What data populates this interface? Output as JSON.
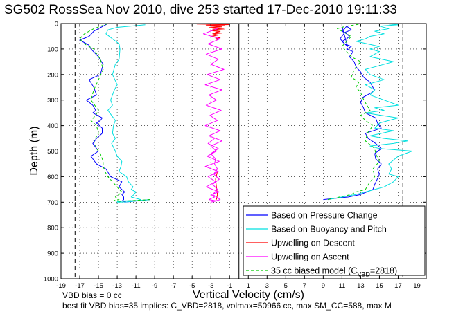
{
  "chart_data": {
    "type": "line",
    "title": "SG502 RossSea Nov 2010, dive 253 started 17-Dec-2010 19:11:33",
    "xlabel": "Vertical Velocity (cm/s)",
    "ylabel": "Depth (m)",
    "xlim": [
      -19,
      20
    ],
    "ylim": [
      0,
      1000
    ],
    "y_reversed": true,
    "grid": true,
    "legend_position": "lower-right",
    "xticks": [
      -19,
      -17,
      -15,
      -13,
      -11,
      -9,
      -7,
      -5,
      -3,
      -1,
      1,
      3,
      5,
      7,
      9,
      11,
      13,
      15,
      17,
      19
    ],
    "yticks": [
      0,
      100,
      200,
      300,
      400,
      500,
      600,
      700,
      800,
      900,
      1000
    ],
    "vertical_lines": [
      {
        "x": -17.5,
        "style": "dashed"
      },
      {
        "x": 0,
        "style": "solid"
      },
      {
        "x": 17.5,
        "style": "dashed"
      }
    ],
    "series": [
      {
        "name": "Based on Pressure Change",
        "color": "#0000ff",
        "segments": [
          {
            "x": [
              -14,
              -15.5,
              -16,
              -17,
              -16,
              -15.8,
              -15,
              -14.5,
              -14.8,
              -16,
              -15.5,
              -15.2,
              -16.3,
              -15.6,
              -15.3,
              -15.6,
              -14.6,
              -14.8,
              -15.2,
              -14.6,
              -14.6,
              -15.2,
              -15.6,
              -15,
              -15.8,
              -15.2,
              -14.2,
              -13.7,
              -12.5,
              -12.8,
              -12.5,
              -12.2,
              -12.5,
              -12.3,
              -12.3,
              -12.4,
              -12.5,
              -12.1,
              -12.2,
              -9.5
            ],
            "y": [
              0,
              30,
              50,
              65,
              85,
              100,
              130,
              160,
              200,
              220,
              250,
              280,
              300,
              320,
              340,
              350,
              370,
              380,
              390,
              410,
              430,
              450,
              470,
              500,
              520,
              550,
              570,
              600,
              620,
              640,
              650,
              660,
              670,
              680,
              690,
              693,
              695,
              697,
              700,
              690
            ]
          },
          {
            "x": [
              9,
              11.7,
              13,
              14.3,
              14.5,
              14.9,
              15,
              14.8,
              15.2,
              14.6,
              14.5,
              15.2,
              14.6,
              13.8,
              13.5,
              15.2,
              14.8,
              14.6,
              13.5,
              13.3,
              13,
              13.2,
              14.2,
              14.5,
              14.3,
              14,
              13.3,
              13,
              12.5,
              12.3,
              11.8,
              12.2,
              11.5,
              12,
              11.3,
              11,
              11.5,
              11.8,
              11.5,
              11,
              11.3,
              11.5,
              12,
              11.3,
              10.8,
              11.3,
              11.6,
              11
            ],
            "y": [
              690,
              680,
              670,
              650,
              630,
              600,
              590,
              570,
              550,
              530,
              510,
              490,
              470,
              450,
              430,
              410,
              390,
              370,
              350,
              330,
              310,
              290,
              270,
              260,
              250,
              230,
              210,
              190,
              170,
              150,
              130,
              110,
              100,
              90,
              80,
              70,
              60,
              50,
              40,
              30,
              20,
              10,
              25,
              35,
              60,
              80,
              90,
              10
            ]
          }
        ]
      },
      {
        "name": "Based on Buoyancy and Pitch",
        "color": "#00e0e0",
        "segments": [
          {
            "x": [
              -10,
              -13,
              -14,
              -14.2,
              -13.5,
              -12.8,
              -12.7,
              -12.8,
              -13.2,
              -13.5,
              -13,
              -13.3,
              -13.7,
              -13.5,
              -14,
              -13.6,
              -13.2,
              -13.4,
              -13.5,
              -13.2,
              -13.6,
              -13.2,
              -13,
              -12.5,
              -12.6,
              -12.8,
              -12,
              -11.8,
              -11.3,
              -11.5,
              -11,
              -11.2,
              -11.5,
              -10.5,
              -10.6,
              -12.5,
              -13,
              -12.5,
              -13,
              -12,
              -9.5
            ],
            "y": [
              5,
              15,
              25,
              40,
              60,
              80,
              100,
              140,
              160,
              200,
              240,
              260,
              300,
              320,
              340,
              360,
              380,
              400,
              430,
              450,
              470,
              500,
              520,
              540,
              560,
              580,
              600,
              620,
              640,
              650,
              660,
              670,
              680,
              690,
              693,
              695,
              697,
              699,
              700,
              699,
              690
            ]
          },
          {
            "x": [
              9.5,
              12.5,
              13.5,
              14.5,
              15.5,
              16.5,
              17,
              16,
              16.3,
              16,
              17,
              18.5,
              15,
              14,
              16.5,
              18,
              15.5,
              14,
              16.5,
              14.5,
              15,
              17,
              13.5,
              15.5,
              14.5,
              17,
              15.5,
              14,
              14.5,
              13.5,
              15.5,
              14,
              13.5,
              14.5,
              16.5,
              14,
              15,
              14,
              15,
              12.5,
              13.5,
              14,
              15.5,
              14.5,
              16,
              15,
              17,
              16
            ],
            "y": [
              690,
              670,
              660,
              650,
              640,
              620,
              600,
              590,
              570,
              550,
              520,
              500,
              490,
              480,
              470,
              460,
              450,
              440,
              420,
              410,
              390,
              370,
              350,
              340,
              330,
              320,
              300,
              280,
              260,
              240,
              220,
              200,
              180,
              170,
              150,
              130,
              110,
              100,
              90,
              70,
              60,
              50,
              40,
              30,
              20,
              10,
              5,
              2
            ]
          }
        ]
      },
      {
        "name": "Upwelling on Descent",
        "color": "#ff0000",
        "segments": [
          {
            "x": [
              -4.5,
              -1,
              -3.5,
              -1.5,
              -3,
              -1.8,
              -3.2,
              -1.6,
              -2.8,
              -1.5,
              -3,
              -2,
              -2.5,
              -1.8,
              -2.8,
              -2.2,
              -3,
              -2,
              -2.5,
              -2.2
            ],
            "y": [
              2,
              4,
              6,
              8,
              10,
              13,
              16,
              19,
              22,
              25,
              28,
              31,
              34,
              37,
              40,
              45,
              50,
              55,
              60,
              65
            ]
          },
          {
            "x": [
              -2.3,
              -2.5,
              -2.4,
              -2.3,
              -2.4
            ],
            "y": [
              580,
              610,
              640,
              670,
              690
            ]
          }
        ]
      },
      {
        "name": "Upwelling on Ascent",
        "color": "#ff00ff",
        "segments": [
          {
            "x": [
              -2.3,
              -3.8,
              -2,
              -3.3,
              -1.8,
              -3.5,
              -2.2,
              -3,
              -1.6,
              -3.4,
              -2,
              -3.6,
              -1.8,
              -3.2,
              -2.4,
              -3.5,
              -1.9,
              -3.1,
              -2.3,
              -3.6,
              -2,
              -3.2,
              -1.8,
              -3,
              -2.4,
              -3.4,
              -2.1,
              -3.6,
              -2.2,
              -3.3,
              -2.5,
              -3.5,
              -2.1,
              -3,
              -2.6,
              -3.2,
              -2.4,
              -3,
              -2,
              -2.8,
              -2.3,
              -2.8,
              -2.1,
              -2.7,
              -2.3,
              -2.6,
              -2.5,
              -3,
              -2.2,
              -3.3,
              -2.6
            ],
            "y": [
              20,
              40,
              60,
              80,
              100,
              120,
              140,
              160,
              180,
              200,
              220,
              240,
              260,
              280,
              300,
              320,
              340,
              360,
              380,
              400,
              420,
              440,
              460,
              480,
              500,
              520,
              540,
              560,
              580,
              600,
              620,
              640,
              660,
              670,
              680,
              690,
              695,
              700,
              690,
              670,
              650,
              630,
              610,
              590,
              570,
              550,
              530,
              510,
              490,
              470,
              450
            ]
          }
        ]
      },
      {
        "name": "35 cc biased model (C_VBD=2818)",
        "legend_text": [
          "35 cc biased model (C",
          "VBD",
          "=2818)"
        ],
        "color": "#00cc00",
        "style": "dashed",
        "segments": [
          {
            "x": [
              -14,
              -15.5,
              -16.5,
              -17,
              -16.5,
              -15.5,
              -14.8,
              -14.5,
              -15,
              -15.5,
              -15.8,
              -15,
              -15.3,
              -15.8,
              -15.2,
              -15,
              -15.5,
              -15.2,
              -14.8,
              -14.5,
              -14.5,
              -14.3,
              -14,
              -13.5,
              -13,
              -12.8,
              -12.5,
              -12.8,
              -13.2,
              -12.8,
              -13.3,
              -13,
              -9.5
            ],
            "y": [
              0,
              20,
              40,
              60,
              80,
              100,
              140,
              180,
              220,
              260,
              300,
              340,
              360,
              380,
              400,
              430,
              460,
              490,
              510,
              540,
              560,
              580,
              600,
              620,
              640,
              650,
              660,
              670,
              680,
              690,
              693,
              697,
              690
            ]
          },
          {
            "x": [
              9.5,
              12,
              12.5,
              13.5,
              14,
              14.5,
              14.3,
              15,
              14.6,
              14.5,
              13.5,
              13.7,
              14.3,
              13.5,
              13,
              14,
              13.5,
              13.2,
              13,
              12.5,
              12.8,
              12,
              12.2,
              12.5,
              13,
              12,
              11.5,
              11,
              11.5,
              12,
              11,
              10.5,
              11.5,
              13
            ],
            "y": [
              690,
              670,
              660,
              650,
              620,
              600,
              570,
              540,
              510,
              490,
              460,
              430,
              400,
              380,
              360,
              340,
              310,
              290,
              270,
              250,
              230,
              210,
              190,
              170,
              150,
              130,
              110,
              90,
              70,
              50,
              30,
              20,
              10,
              2
            ]
          }
        ]
      }
    ],
    "annotations": [
      "VBD bias = 0 cc",
      "best fit VBD bias=35 implies: C_VBD=2818, volmax=50966 cc, max SM_CC=588, max M"
    ]
  }
}
